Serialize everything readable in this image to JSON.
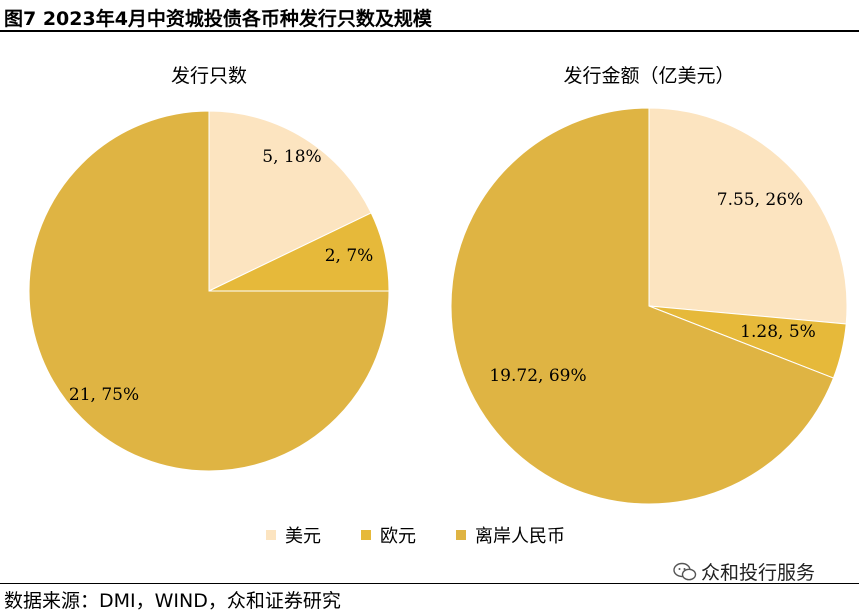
{
  "header": {
    "title": "图7 2023年4月中资城投债各币种发行只数及规模"
  },
  "footer": {
    "source": "数据来源：DMI，WIND，众和证券研究",
    "watermark": "众和投行服务"
  },
  "colors": {
    "usd": "#FCE4C0",
    "eur": "#E6B93A",
    "cnh": "#DFB443"
  },
  "legend": [
    {
      "label": "美元",
      "color": "#FCE4C0"
    },
    {
      "label": "欧元",
      "color": "#E6B93A"
    },
    {
      "label": "离岸人民币",
      "color": "#DFB443"
    }
  ],
  "chart_data": [
    {
      "type": "pie",
      "title": "发行只数",
      "categories": [
        "美元",
        "欧元",
        "离岸人民币"
      ],
      "values": [
        5,
        2,
        21
      ],
      "labels": [
        "5, 18%",
        "2, 7%",
        "21, 75%"
      ]
    },
    {
      "type": "pie",
      "title": "发行金额（亿美元）",
      "categories": [
        "美元",
        "欧元",
        "离岸人民币"
      ],
      "values": [
        7.55,
        1.28,
        19.72
      ],
      "labels": [
        "7.55, 26%",
        "1.28, 5%",
        "19.72, 69%"
      ]
    }
  ]
}
